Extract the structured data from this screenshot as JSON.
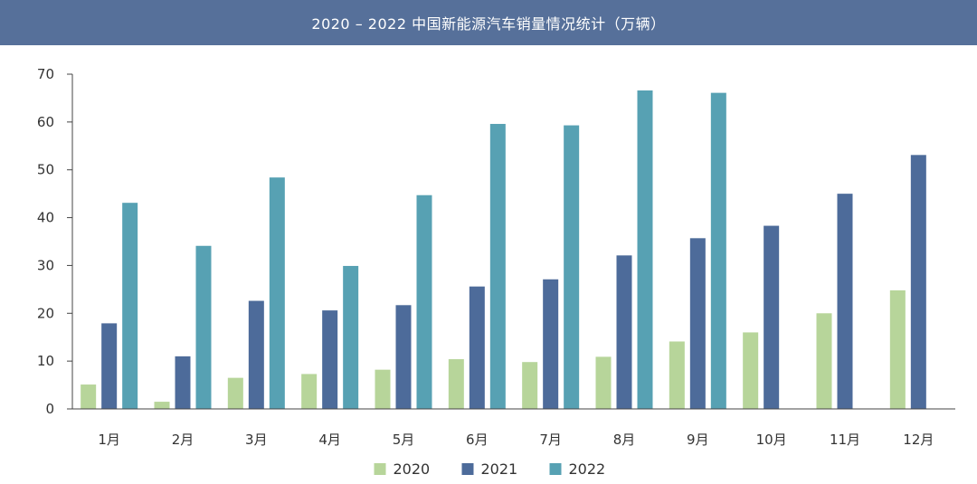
{
  "colors": {
    "title_bar": "#56709a",
    "axis": "#444444"
  },
  "chart_data": {
    "type": "bar",
    "title": "2020 – 2022 中国新能源汽车销量情况统计（万辆）",
    "xlabel": "",
    "ylabel": "",
    "ylim": [
      0,
      70
    ],
    "y_ticks": [
      0,
      10,
      20,
      30,
      40,
      50,
      60,
      70
    ],
    "grid": false,
    "legend_position": "bottom-center",
    "categories": [
      "1月",
      "2月",
      "3月",
      "4月",
      "5月",
      "6月",
      "7月",
      "8月",
      "9月",
      "10月",
      "11月",
      "12月"
    ],
    "series": [
      {
        "name": "2020",
        "color": "#b7d59a",
        "values": [
          5.1,
          1.5,
          6.5,
          7.3,
          8.2,
          10.4,
          9.8,
          10.9,
          14.1,
          16.0,
          20.0,
          24.8
        ]
      },
      {
        "name": "2021",
        "color": "#4d6b9a",
        "values": [
          17.9,
          11.0,
          22.6,
          20.6,
          21.7,
          25.6,
          27.1,
          32.1,
          35.7,
          38.3,
          45.0,
          53.1
        ]
      },
      {
        "name": "2022",
        "color": "#57a1b3",
        "values": [
          43.1,
          34.1,
          48.4,
          29.9,
          44.7,
          59.6,
          59.3,
          66.6,
          66.1,
          null,
          null,
          null
        ]
      }
    ]
  }
}
